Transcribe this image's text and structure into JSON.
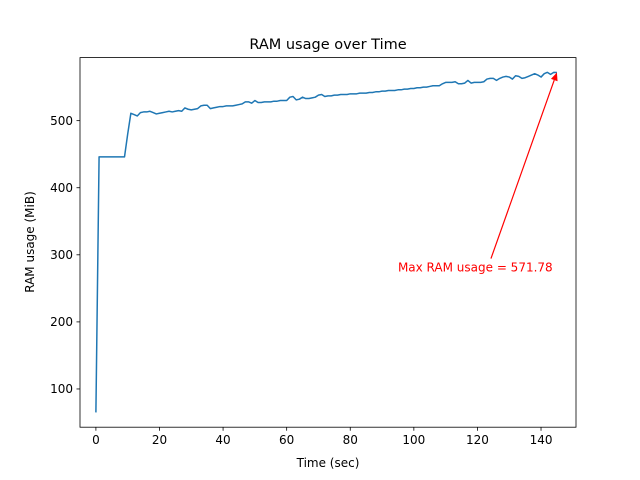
{
  "chart_data": {
    "type": "line",
    "title": "RAM usage over Time",
    "xlabel": "Time (sec)",
    "ylabel": "RAM usage (MiB)",
    "xlim": [
      -5,
      151
    ],
    "ylim": [
      43,
      594
    ],
    "xticks": [
      0,
      20,
      40,
      60,
      80,
      100,
      120,
      140
    ],
    "yticks": [
      100,
      200,
      300,
      400,
      500
    ],
    "grid": false,
    "line_color": "#1f77b4",
    "annotation": {
      "text": "Max RAM usage = 571.78",
      "color": "#ff0000",
      "xy": [
        145,
        571.78
      ],
      "text_xy": [
        95,
        275
      ]
    },
    "series": [
      {
        "x": [
          0,
          1,
          2,
          3,
          4,
          5,
          6,
          7,
          8,
          9,
          10,
          11,
          12,
          13,
          14,
          15,
          16,
          17,
          18,
          19,
          20,
          21,
          22,
          23,
          24,
          25,
          26,
          27,
          28,
          29,
          30,
          31,
          32,
          33,
          34,
          35,
          36,
          37,
          38,
          39,
          40,
          41,
          42,
          43,
          44,
          45,
          46,
          47,
          48,
          49,
          50,
          51,
          52,
          53,
          54,
          55,
          56,
          57,
          58,
          59,
          60,
          61,
          62,
          63,
          64,
          65,
          66,
          67,
          68,
          69,
          70,
          71,
          72,
          73,
          74,
          75,
          76,
          77,
          78,
          79,
          80,
          81,
          82,
          83,
          84,
          85,
          86,
          87,
          88,
          89,
          90,
          91,
          92,
          93,
          94,
          95,
          96,
          97,
          98,
          99,
          100,
          101,
          102,
          103,
          104,
          105,
          106,
          107,
          108,
          109,
          110,
          111,
          112,
          113,
          114,
          115,
          116,
          117,
          118,
          119,
          120,
          121,
          122,
          123,
          124,
          125,
          126,
          127,
          128,
          129,
          130,
          131,
          132,
          133,
          134,
          135,
          136,
          137,
          138,
          139,
          140,
          141,
          142,
          143,
          144,
          145
        ],
        "values": [
          65,
          446,
          446,
          446,
          446,
          446,
          446,
          446,
          446,
          446,
          480,
          511,
          509,
          507,
          512,
          513,
          513,
          514,
          512,
          510,
          511,
          512,
          513,
          514,
          513,
          514,
          515,
          514,
          519,
          517,
          516,
          517,
          518,
          522,
          523,
          523,
          518,
          519,
          520,
          521,
          521,
          522,
          522,
          522,
          523,
          524,
          525,
          528,
          528,
          526,
          530,
          527,
          527,
          528,
          528,
          528,
          529,
          529,
          530,
          530,
          530,
          535,
          536,
          531,
          532,
          535,
          533,
          533,
          534,
          535,
          538,
          539,
          536,
          537,
          537,
          538,
          538,
          539,
          539,
          539,
          540,
          540,
          540,
          541,
          541,
          541,
          542,
          542,
          543,
          543,
          544,
          544,
          545,
          545,
          545,
          546,
          546,
          547,
          547,
          548,
          548,
          549,
          549,
          550,
          550,
          551,
          552,
          552,
          552,
          555,
          557,
          557,
          557,
          558,
          555,
          555,
          556,
          560,
          556,
          557,
          557,
          557,
          558,
          562,
          563,
          563,
          560,
          563,
          565,
          566,
          565,
          562,
          567,
          566,
          563,
          564,
          566,
          568,
          570,
          568,
          565,
          570,
          572,
          569,
          572,
          571.78
        ]
      }
    ]
  }
}
